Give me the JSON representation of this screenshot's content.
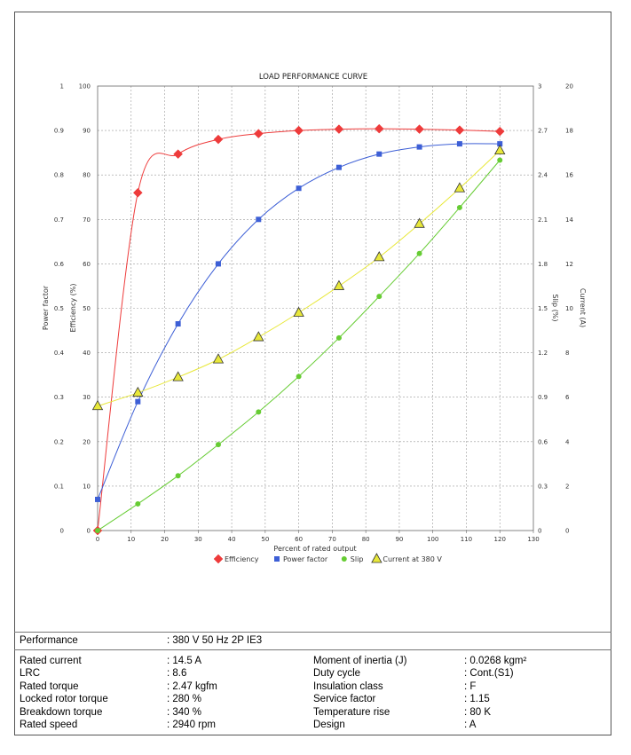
{
  "chart_data": {
    "type": "line",
    "title": "LOAD PERFORMANCE CURVE",
    "xlabel": "Percent of rated output",
    "xlim": [
      0,
      130
    ],
    "x_ticks": [
      "0",
      "10",
      "20",
      "30",
      "40",
      "50",
      "60",
      "70",
      "80",
      "90",
      "100",
      "110",
      "120",
      "130"
    ],
    "axes": {
      "power_factor": {
        "label": "Power factor",
        "range": [
          0,
          1
        ],
        "ticks": [
          "0",
          "0.1",
          "0.2",
          "0.3",
          "0.4",
          "0.5",
          "0.6",
          "0.7",
          "0.8",
          "0.9",
          "1"
        ]
      },
      "efficiency": {
        "label": "Efficiency (%)",
        "range": [
          0,
          100
        ],
        "ticks": [
          "0",
          "10",
          "20",
          "30",
          "40",
          "50",
          "60",
          "70",
          "80",
          "90",
          "100"
        ]
      },
      "slip": {
        "label": "Slip (%)",
        "range": [
          0,
          3
        ],
        "ticks": [
          "0",
          "0.3",
          "0.6",
          "0.9",
          "1.2",
          "1.5",
          "1.8",
          "2.1",
          "2.4",
          "2.7",
          "3"
        ]
      },
      "current": {
        "label": "Current (A)",
        "range": [
          0,
          20
        ],
        "ticks": [
          "0",
          "2",
          "4",
          "6",
          "8",
          "10",
          "12",
          "14",
          "16",
          "18",
          "20"
        ]
      }
    },
    "grid": true,
    "legend_position": "bottom",
    "series": [
      {
        "name": "Efficiency",
        "axis": "efficiency",
        "color": "#ee3b3b",
        "marker": "diamond",
        "x": [
          0,
          12,
          24,
          36,
          48,
          60,
          72,
          84,
          96,
          108,
          120
        ],
        "y": [
          0,
          76,
          84.7,
          88,
          89.3,
          90,
          90.3,
          90.4,
          90.3,
          90.1,
          89.8
        ]
      },
      {
        "name": "Power factor",
        "axis": "power_factor",
        "color": "#3d5fd6",
        "marker": "square",
        "x": [
          0,
          12,
          24,
          36,
          48,
          60,
          72,
          84,
          96,
          108,
          120
        ],
        "y": [
          0.07,
          0.29,
          0.465,
          0.6,
          0.7,
          0.77,
          0.817,
          0.847,
          0.863,
          0.87,
          0.87
        ]
      },
      {
        "name": "Slip",
        "axis": "slip",
        "color": "#66cc33",
        "marker": "circle",
        "x": [
          0,
          12,
          24,
          36,
          48,
          60,
          72,
          84,
          96,
          108,
          120
        ],
        "y": [
          0,
          0.18,
          0.37,
          0.58,
          0.8,
          1.04,
          1.3,
          1.58,
          1.87,
          2.18,
          2.5
        ]
      },
      {
        "name": "Current at 380 V",
        "axis": "current",
        "color": "#e8e83a",
        "marker": "triangle",
        "x": [
          0,
          12,
          24,
          36,
          48,
          60,
          72,
          84,
          96,
          108,
          120
        ],
        "y": [
          5.6,
          6.2,
          6.9,
          7.7,
          8.7,
          9.8,
          11,
          12.3,
          13.8,
          15.4,
          17.1
        ]
      }
    ]
  },
  "specs": {
    "performance": {
      "label": "Performance",
      "value": ": 380 V 50 Hz 2P IE3"
    },
    "left": [
      {
        "label": "Rated current",
        "value": ": 14.5 A"
      },
      {
        "label": "LRC",
        "value": ": 8.6"
      },
      {
        "label": "Rated torque",
        "value": ": 2.47 kgfm"
      },
      {
        "label": "Locked rotor torque",
        "value": ": 280 %"
      },
      {
        "label": "Breakdown torque",
        "value": ": 340 %"
      },
      {
        "label": "Rated speed",
        "value": ": 2940 rpm"
      }
    ],
    "right": [
      {
        "label": "Moment of inertia (J)",
        "value": ": 0.0268 kgm²"
      },
      {
        "label": "Duty cycle",
        "value": ": Cont.(S1)"
      },
      {
        "label": "Insulation class",
        "value": ": F"
      },
      {
        "label": "Service factor",
        "value": ": 1.15"
      },
      {
        "label": "Temperature rise",
        "value": ": 80 K"
      },
      {
        "label": "Design",
        "value": ": A"
      }
    ]
  }
}
